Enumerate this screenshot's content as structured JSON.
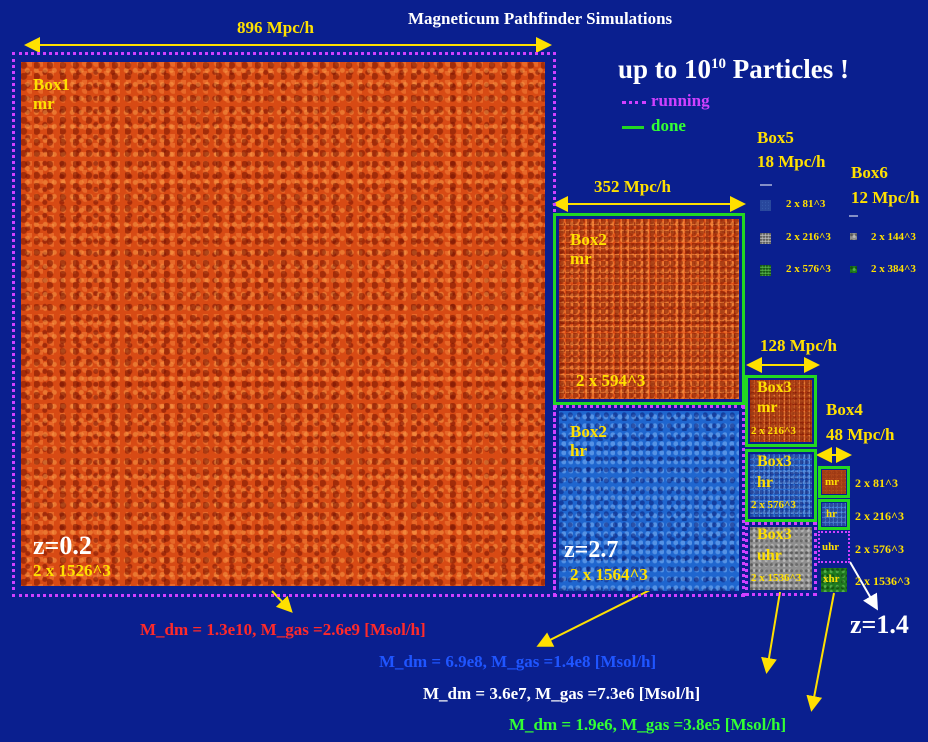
{
  "title": "Magneticum Pathfinder Simulations",
  "headline": {
    "prefix": "up to 10",
    "exponent": "10",
    "suffix": " Particles !"
  },
  "legend": {
    "running": "running",
    "done": "done"
  },
  "box1": {
    "width": "896 Mpc/h",
    "name": "Box1",
    "res": "mr",
    "z": "z=0.2",
    "particles": "2 x 1526^3"
  },
  "box2": {
    "width": "352 Mpc/h",
    "mr": {
      "name": "Box2",
      "res": "mr",
      "particles": "2 x 594^3"
    },
    "hr": {
      "name": "Box2",
      "res": "hr",
      "z": "z=2.7",
      "particles": "2 x 1564^3"
    }
  },
  "box3": {
    "width": "128 Mpc/h",
    "mr": {
      "name": "Box3",
      "res": "mr",
      "particles": "2 x 216^3"
    },
    "hr": {
      "name": "Box3",
      "res": "hr",
      "particles": "2 x 576^3"
    },
    "uhr": {
      "name": "Box3",
      "res": "uhr",
      "particles": "2 x 1536^3"
    }
  },
  "box4": {
    "name": "Box4",
    "width": "48 Mpc/h",
    "levels": [
      {
        "res": "mr",
        "particles": "2 x 81^3"
      },
      {
        "res": "hr",
        "particles": "2 x 216^3"
      },
      {
        "res": "uhr",
        "particles": "2 x 576^3"
      },
      {
        "res": "xhr",
        "particles": "2 x 1536^3"
      }
    ],
    "z": "z=1.4"
  },
  "box5": {
    "name": "Box5",
    "width": "18 Mpc/h",
    "particles": [
      "2 x 81^3",
      "2 x 216^3",
      "2 x 576^3"
    ]
  },
  "box6": {
    "name": "Box6",
    "width": "12 Mpc/h",
    "particles": [
      "2 x 144^3",
      "2 x 384^3"
    ]
  },
  "masses": [
    {
      "text": "M_dm = 1.3e10, M_gas =2.6e9 [Msol/h]",
      "color": "#ff2a2a"
    },
    {
      "text": "M_dm = 6.9e8, M_gas =1.4e8 [Msol/h]",
      "color": "#1f55ff"
    },
    {
      "text": "M_dm = 3.6e7, M_gas =7.3e6 [Msol/h]",
      "color": "#ffffff"
    },
    {
      "text": "M_dm = 1.9e6, M_gas =3.8e5 [Msol/h]",
      "color": "#33ff33"
    }
  ],
  "colors": {
    "background": "#0a1f8f",
    "running": "#d040ff",
    "done": "#22d822",
    "label": "#ffe000"
  }
}
